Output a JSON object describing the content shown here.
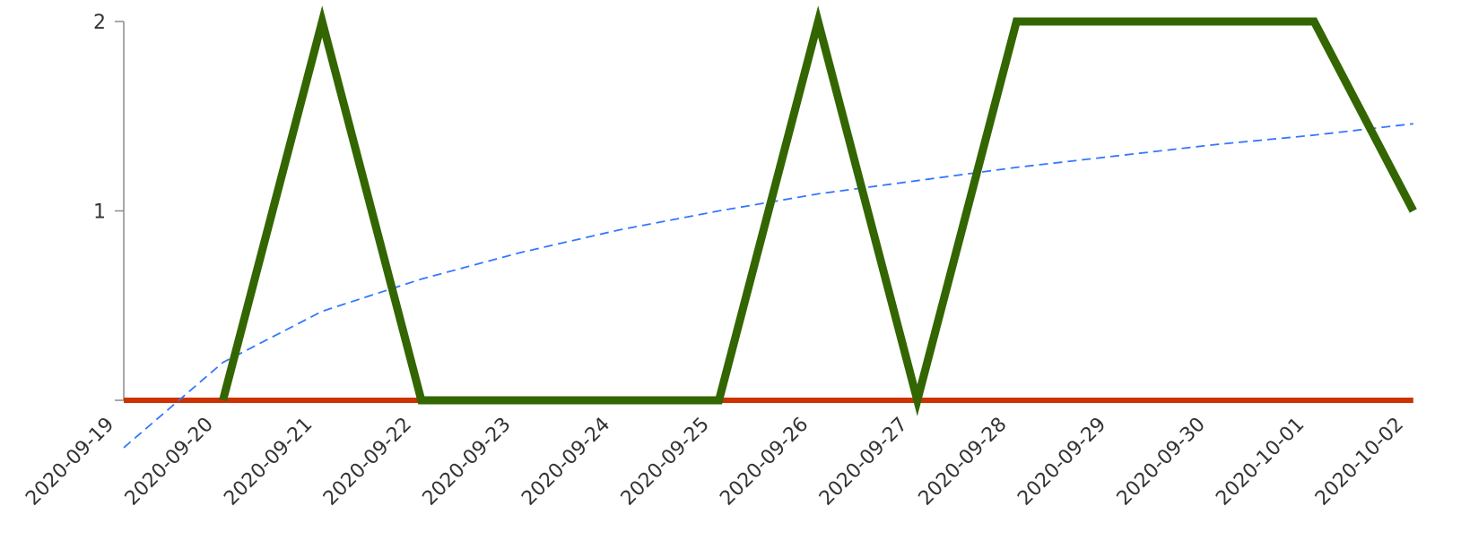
{
  "chart_data": {
    "type": "line",
    "title": "",
    "xlabel": "",
    "ylabel": "",
    "x": [
      "2020-09-19",
      "2020-09-20",
      "2020-09-21",
      "2020-09-22",
      "2020-09-23",
      "2020-09-24",
      "2020-09-25",
      "2020-09-26",
      "2020-09-27",
      "2020-09-28",
      "2020-09-29",
      "2020-09-30",
      "2020-10-01",
      "2020-10-02"
    ],
    "x_tick_labels": [
      "2020-09-19",
      "2020-09-20",
      "2020-09-21",
      "2020-09-22",
      "2020-09-23",
      "2020-09-24",
      "2020-09-25",
      "2020-09-26",
      "2020-09-27",
      "2020-09-28",
      "2020-09-29",
      "2020-09-30",
      "2020-10-01",
      "2020-10-02"
    ],
    "y_tick_labels": [
      "1",
      "2"
    ],
    "xlim": [
      "2020-09-19",
      "2020-10-02"
    ],
    "ylim": [
      0,
      2
    ],
    "grid": false,
    "legend": "none",
    "series": [
      {
        "style": "solid-thick",
        "color": "#336600",
        "points": [
          [
            "2020-09-20",
            0
          ],
          [
            "2020-09-21",
            2
          ],
          [
            "2020-09-22",
            0
          ],
          [
            "2020-09-25",
            0
          ],
          [
            "2020-09-26",
            2
          ],
          [
            "2020-09-27",
            0
          ],
          [
            "2020-09-28",
            2
          ],
          [
            "2020-10-01",
            2
          ],
          [
            "2020-10-02",
            1
          ]
        ]
      },
      {
        "style": "solid",
        "color": "#cc3300",
        "points": [
          [
            "2020-09-19",
            0
          ],
          [
            "2020-10-02",
            0
          ]
        ]
      },
      {
        "style": "dashed",
        "color": "#3377ff",
        "points": [
          [
            "2020-09-19",
            -0.25
          ],
          [
            "2020-09-20",
            0.2
          ],
          [
            "2020-09-21",
            0.47
          ],
          [
            "2020-09-22",
            0.64
          ],
          [
            "2020-09-23",
            0.78
          ],
          [
            "2020-09-24",
            0.9
          ],
          [
            "2020-09-25",
            1.0
          ],
          [
            "2020-09-26",
            1.09
          ],
          [
            "2020-09-27",
            1.16
          ],
          [
            "2020-09-28",
            1.23
          ],
          [
            "2020-09-29",
            1.29
          ],
          [
            "2020-09-30",
            1.35
          ],
          [
            "2020-10-01",
            1.4
          ],
          [
            "2020-10-02",
            1.46
          ]
        ]
      }
    ]
  }
}
